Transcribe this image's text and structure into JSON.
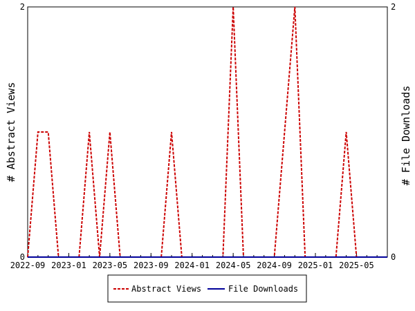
{
  "chart_data": {
    "type": "line",
    "title": "",
    "y_left": {
      "label": "# Abstract Views",
      "ylim": [
        0,
        2
      ],
      "ticks": [
        "0",
        "2"
      ]
    },
    "y_right": {
      "label": "# File Downloads",
      "ylim": [
        0,
        2
      ],
      "ticks": [
        "0",
        "2"
      ]
    },
    "x_tick_labels": [
      "2022-09",
      "2023-01",
      "2023-05",
      "2023-09",
      "2024-01",
      "2024-05",
      "2024-09",
      "2025-01",
      "2025-05"
    ],
    "x_range": [
      "2022-09",
      "2025-08"
    ],
    "grid": false,
    "legend_position": "bottom",
    "series": [
      {
        "name": "Abstract Views",
        "color": "#cc0000",
        "style": "dashed",
        "axis": "left",
        "points": [
          [
            "2022-09",
            0
          ],
          [
            "2022-10",
            1
          ],
          [
            "2022-11",
            1
          ],
          [
            "2022-12",
            0
          ],
          [
            "2023-01",
            0
          ],
          [
            "2023-02",
            0
          ],
          [
            "2023-03",
            1
          ],
          [
            "2023-04",
            0
          ],
          [
            "2023-05",
            1
          ],
          [
            "2023-06",
            0
          ],
          [
            "2023-07",
            0
          ],
          [
            "2023-08",
            0
          ],
          [
            "2023-09",
            0
          ],
          [
            "2023-10",
            0
          ],
          [
            "2023-11",
            1
          ],
          [
            "2023-12",
            0
          ],
          [
            "2024-01",
            0
          ],
          [
            "2024-02",
            0
          ],
          [
            "2024-03",
            0
          ],
          [
            "2024-04",
            0
          ],
          [
            "2024-05",
            2
          ],
          [
            "2024-06",
            0
          ],
          [
            "2024-07",
            0
          ],
          [
            "2024-08",
            0
          ],
          [
            "2024-09",
            0
          ],
          [
            "2024-10",
            1
          ],
          [
            "2024-11",
            2
          ],
          [
            "2024-12",
            0
          ],
          [
            "2025-01",
            0
          ],
          [
            "2025-02",
            0
          ],
          [
            "2025-03",
            0
          ],
          [
            "2025-04",
            1
          ],
          [
            "2025-05",
            0
          ],
          [
            "2025-06",
            0
          ],
          [
            "2025-07",
            0
          ],
          [
            "2025-08",
            0
          ]
        ]
      },
      {
        "name": "File Downloads",
        "color": "#000099",
        "style": "solid",
        "axis": "right",
        "points": [
          [
            "2022-09",
            0
          ],
          [
            "2022-10",
            0
          ],
          [
            "2022-11",
            0
          ],
          [
            "2022-12",
            0
          ],
          [
            "2023-01",
            0
          ],
          [
            "2023-02",
            0
          ],
          [
            "2023-03",
            0
          ],
          [
            "2023-04",
            0
          ],
          [
            "2023-05",
            0
          ],
          [
            "2023-06",
            0
          ],
          [
            "2023-07",
            0
          ],
          [
            "2023-08",
            0
          ],
          [
            "2023-09",
            0
          ],
          [
            "2023-10",
            0
          ],
          [
            "2023-11",
            0
          ],
          [
            "2023-12",
            0
          ],
          [
            "2024-01",
            0
          ],
          [
            "2024-02",
            0
          ],
          [
            "2024-03",
            0
          ],
          [
            "2024-04",
            0
          ],
          [
            "2024-05",
            0
          ],
          [
            "2024-06",
            0
          ],
          [
            "2024-07",
            0
          ],
          [
            "2024-08",
            0
          ],
          [
            "2024-09",
            0
          ],
          [
            "2024-10",
            0
          ],
          [
            "2024-11",
            0
          ],
          [
            "2024-12",
            0
          ],
          [
            "2025-01",
            0
          ],
          [
            "2025-02",
            0
          ],
          [
            "2025-03",
            0
          ],
          [
            "2025-04",
            0
          ],
          [
            "2025-05",
            0
          ],
          [
            "2025-06",
            0
          ],
          [
            "2025-07",
            0
          ],
          [
            "2025-08",
            0
          ]
        ]
      }
    ]
  }
}
